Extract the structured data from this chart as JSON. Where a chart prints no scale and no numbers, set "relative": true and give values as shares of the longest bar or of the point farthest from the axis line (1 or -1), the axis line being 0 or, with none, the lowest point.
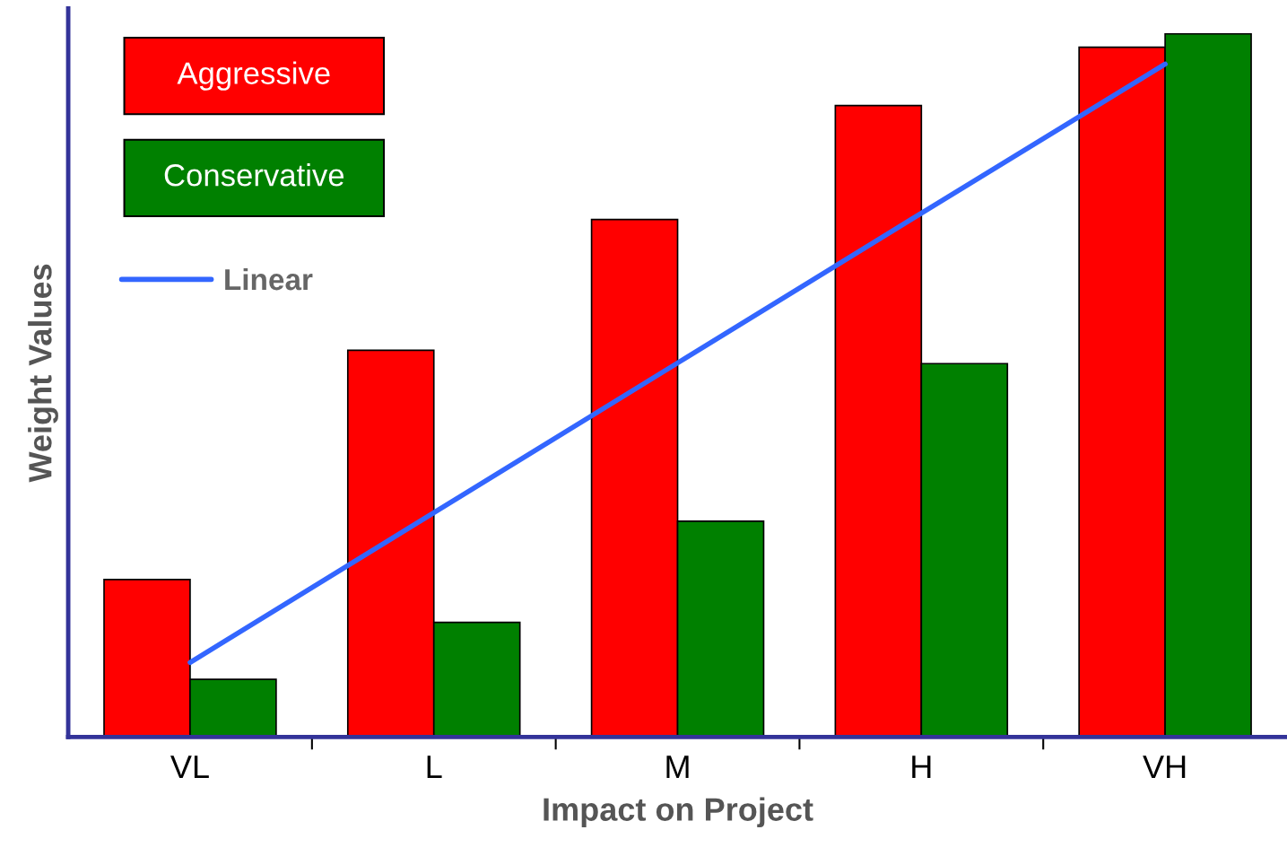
{
  "chart_data": {
    "type": "bar",
    "relative": true,
    "xlabel": "Impact on Project",
    "ylabel": "Weight Values",
    "categories": [
      "VL",
      "L",
      "M",
      "H",
      "VH"
    ],
    "legend": "top left",
    "grid": false,
    "series": [
      {
        "name": "Aggressive",
        "color": "#ff0000",
        "values": [
          0.224,
          0.55,
          0.736,
          0.898,
          0.981
        ]
      },
      {
        "name": "Conservative",
        "color": "#008000",
        "values": [
          0.082,
          0.163,
          0.307,
          0.531,
          1.0
        ]
      },
      {
        "name": "Linear",
        "type": "line",
        "color": "#3366ff",
        "values": [
          0.106,
          0.319,
          0.532,
          0.745,
          0.957
        ]
      }
    ]
  }
}
